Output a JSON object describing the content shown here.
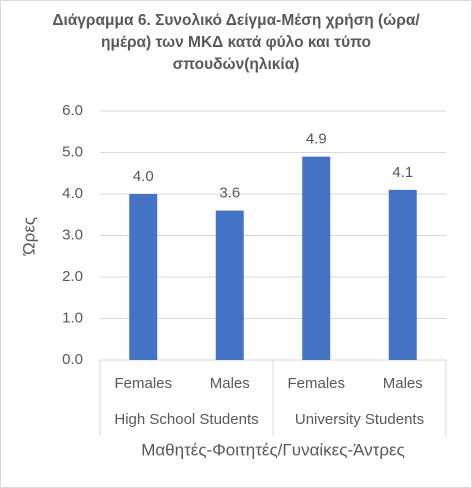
{
  "chart_data": {
    "type": "bar",
    "title": "Διάγραμμα 6. Συνολικό Δείγμα-Μέση χρήση (ώρα/ημέρα) των ΜΚΔ κατά φύλο και τύπο σπουδών(ηλικία)",
    "categories": [
      "Females",
      "Males",
      "Females",
      "Males"
    ],
    "groups": [
      "High School Students",
      "University Students"
    ],
    "values": [
      4.0,
      3.6,
      4.9,
      4.1
    ],
    "value_labels": [
      "4.0",
      "3.6",
      "4.9",
      "4.1"
    ],
    "color": "#4472c4",
    "x_label": "Μαθητές-Φοιτητές/Γυναίκες-Άντρες",
    "y_label": "Ώρες",
    "ylim": [
      0,
      6
    ],
    "yticks": [
      {
        "value": 0,
        "label": "0.0"
      },
      {
        "value": 1,
        "label": "1.0"
      },
      {
        "value": 2,
        "label": "2.0"
      },
      {
        "value": 3,
        "label": "3.0"
      },
      {
        "value": 4,
        "label": "4.0"
      },
      {
        "value": 5,
        "label": "5.0"
      },
      {
        "value": 6,
        "label": "6.0"
      }
    ],
    "grid": true
  }
}
